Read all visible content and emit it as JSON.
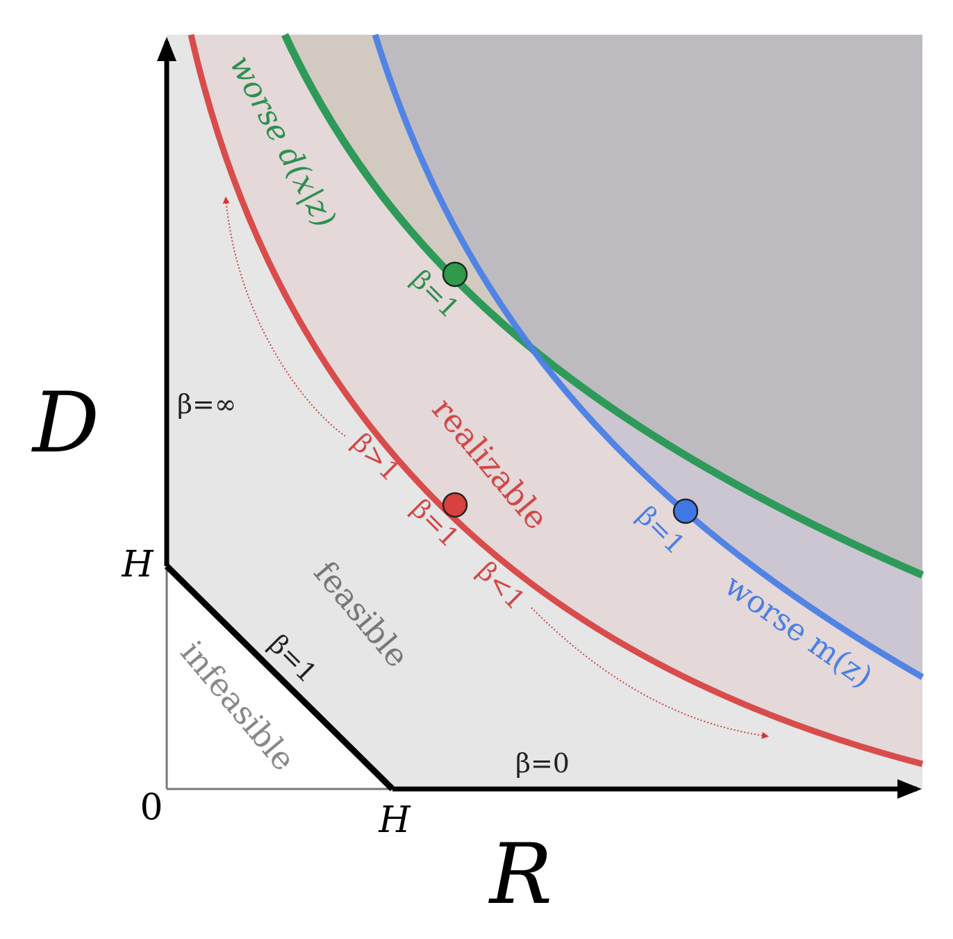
{
  "axes": {
    "y_label": "D",
    "x_label": "R",
    "origin": "0",
    "y_h": "H",
    "x_h": "H"
  },
  "regions": {
    "worse_d": "worse d(x|z)",
    "worse_m": "worse m(z)",
    "realizable": "realizable",
    "feasible": "feasible",
    "infeasible": "infeasible"
  },
  "beta_labels": [
    "β=∞",
    "β=0",
    "β=1",
    "β=1",
    "β=1",
    "β=1",
    "β>1",
    "β<1"
  ]
}
